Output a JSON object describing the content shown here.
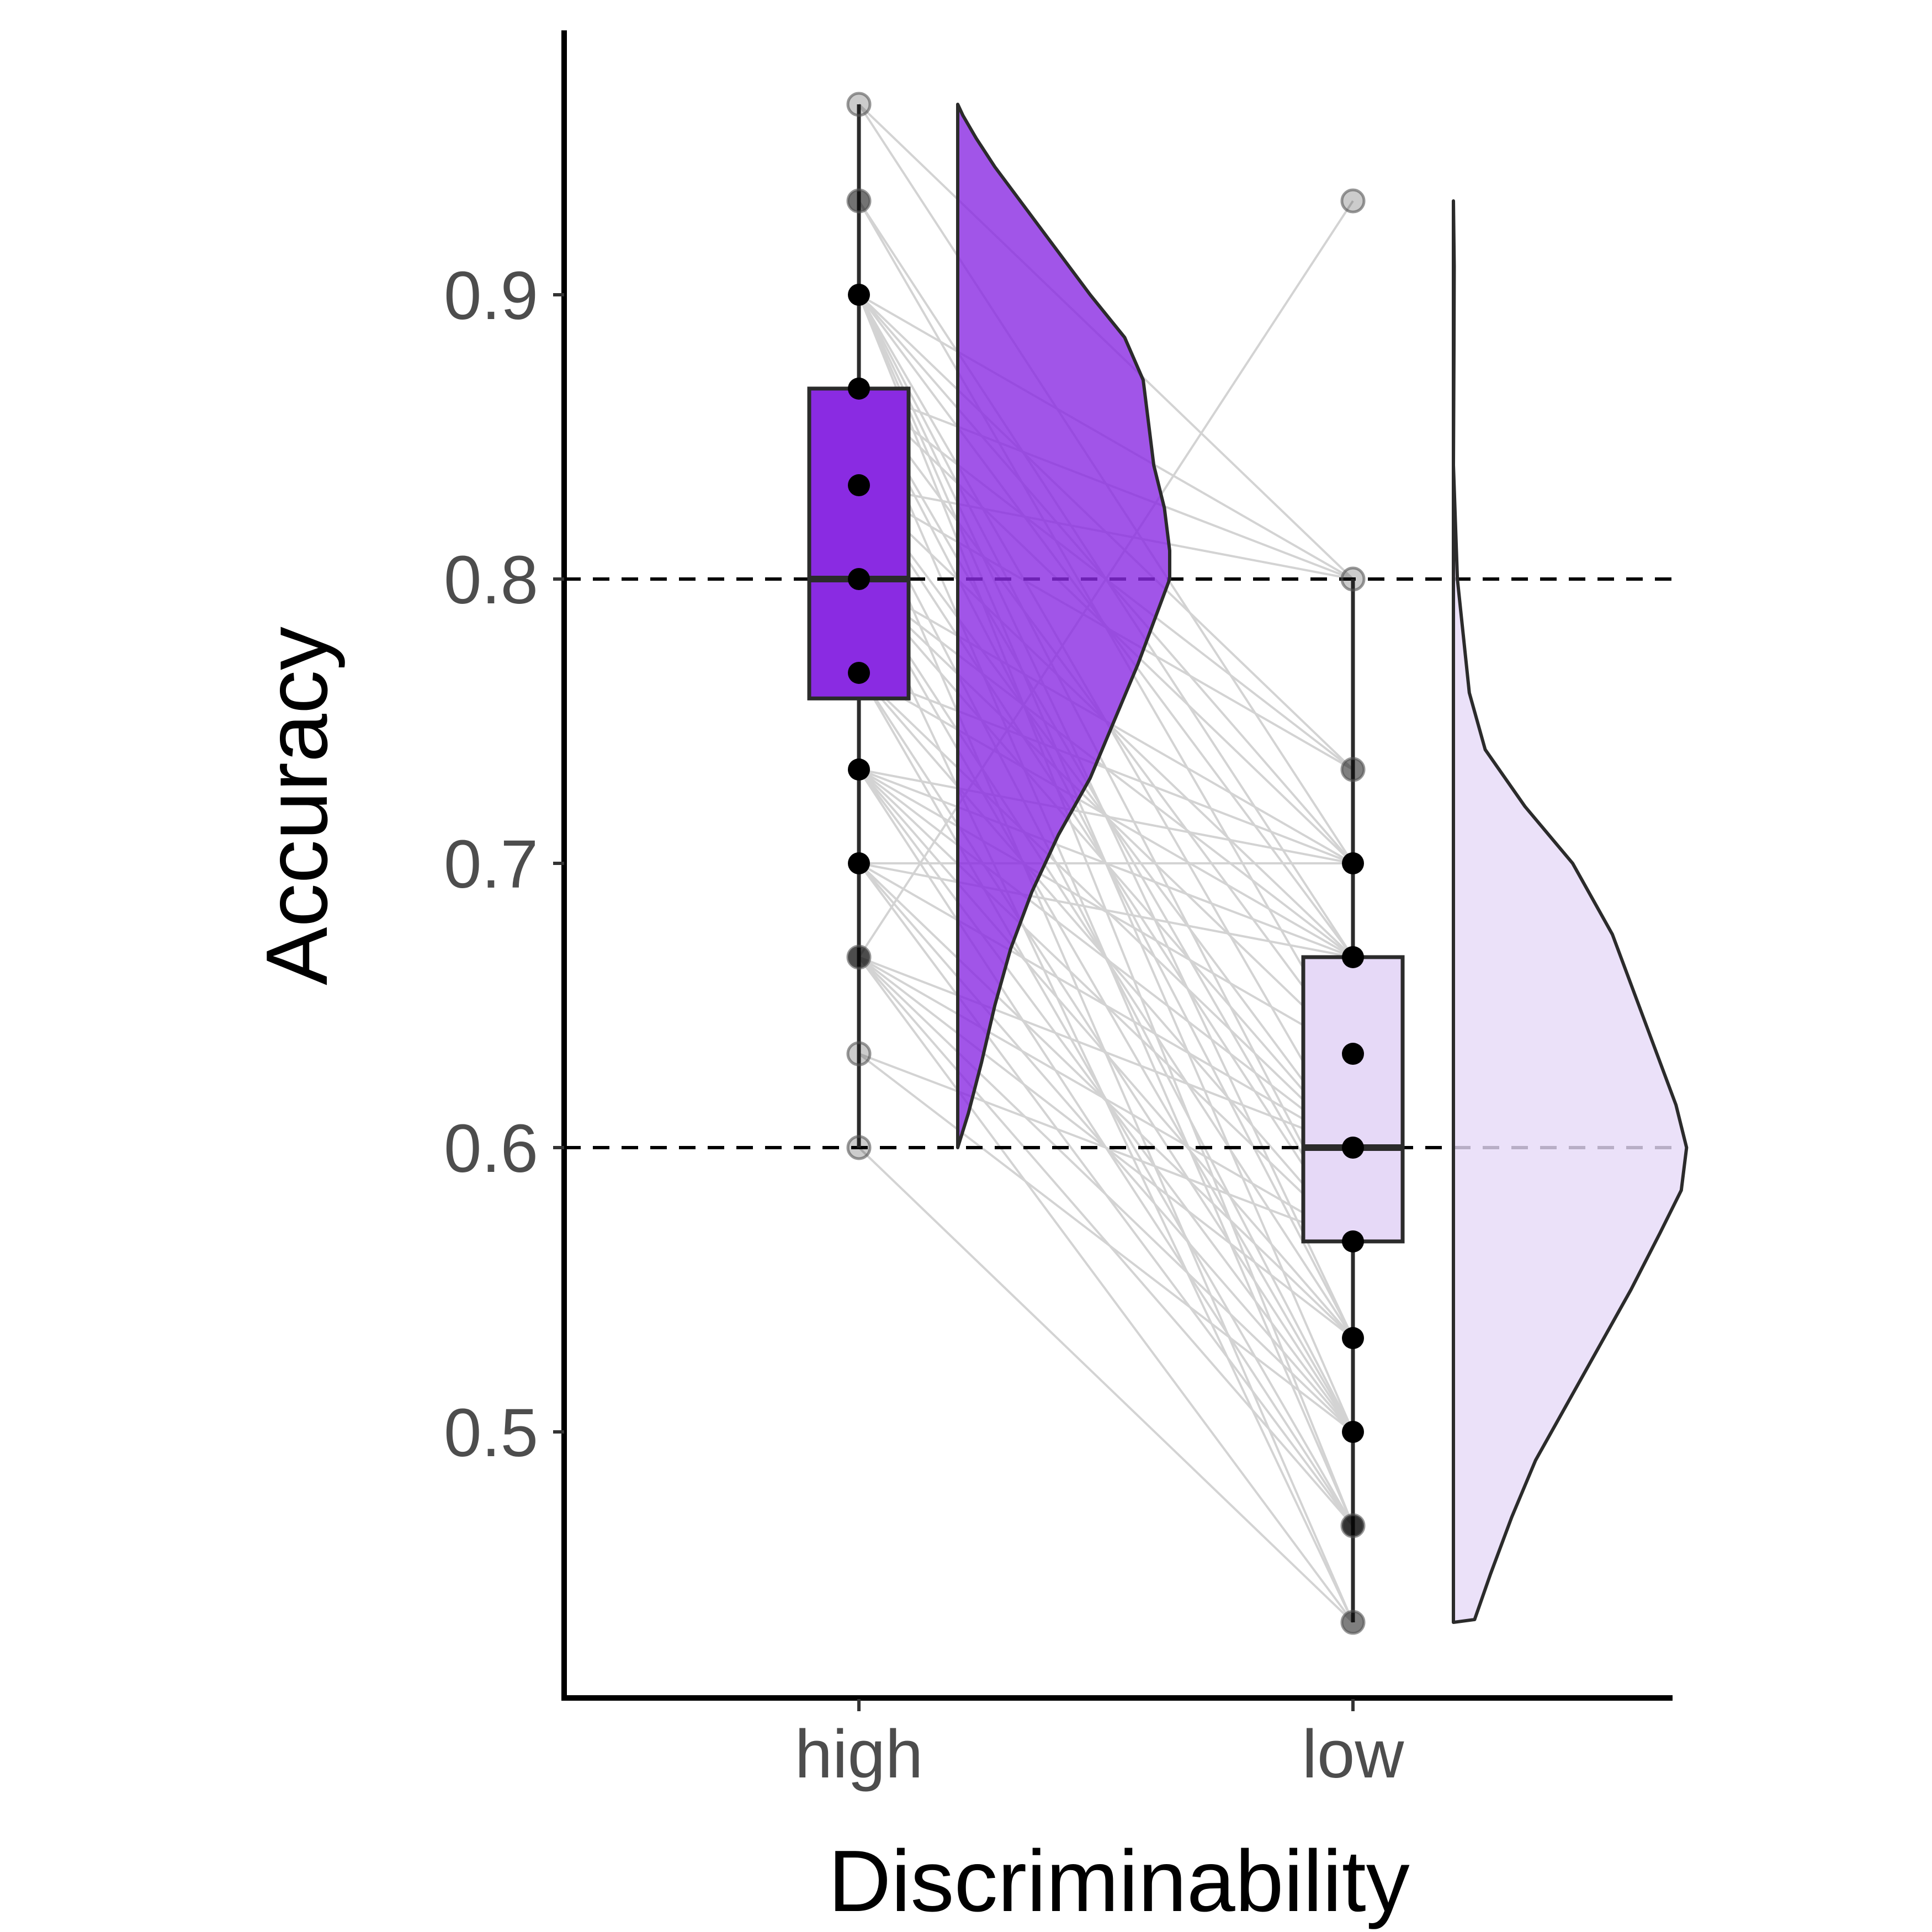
{
  "chart_data": {
    "type": "raincloud",
    "xlabel": "Discriminability",
    "ylabel": "Accuracy",
    "ylim": [
      0.415,
      0.99
    ],
    "y_ticks": [
      0.5,
      0.6,
      0.7,
      0.8,
      0.9
    ],
    "y_tick_labels": [
      "0.5",
      "0.6",
      "0.7",
      "0.8",
      "0.9"
    ],
    "reference_lines": [
      0.6,
      0.8
    ],
    "grid": false,
    "categories": [
      "high",
      "low"
    ],
    "groups": [
      {
        "category": "high",
        "color": "#8a2be2",
        "fill_opacity": 0.95,
        "box": {
          "whisker_low": 0.6,
          "q1": 0.758,
          "median": 0.8,
          "q3": 0.867,
          "whisker_high": 0.967
        },
        "points": [
          0.967,
          0.933,
          0.9,
          0.867,
          0.833,
          0.8,
          0.767,
          0.733,
          0.7,
          0.667,
          0.633,
          0.6
        ],
        "point_opacity": [
          0.2,
          0.55,
          1,
          1,
          1,
          1,
          1,
          1,
          1,
          0.7,
          0.2,
          0.2
        ],
        "density": [
          [
            0.6,
            0.0
          ],
          [
            0.612,
            0.04
          ],
          [
            0.63,
            0.09
          ],
          [
            0.65,
            0.14
          ],
          [
            0.67,
            0.2
          ],
          [
            0.69,
            0.28
          ],
          [
            0.71,
            0.38
          ],
          [
            0.73,
            0.5
          ],
          [
            0.75,
            0.59
          ],
          [
            0.77,
            0.68
          ],
          [
            0.79,
            0.76
          ],
          [
            0.8,
            0.8
          ],
          [
            0.81,
            0.8
          ],
          [
            0.825,
            0.78
          ],
          [
            0.84,
            0.74
          ],
          [
            0.855,
            0.72
          ],
          [
            0.87,
            0.7
          ],
          [
            0.885,
            0.63
          ],
          [
            0.9,
            0.5
          ],
          [
            0.915,
            0.38
          ],
          [
            0.93,
            0.26
          ],
          [
            0.945,
            0.14
          ],
          [
            0.955,
            0.07
          ],
          [
            0.963,
            0.02
          ],
          [
            0.967,
            0.0
          ]
        ]
      },
      {
        "category": "low",
        "color": "#e6d9f7",
        "fill_opacity": 0.95,
        "box": {
          "whisker_low": 0.433,
          "q1": 0.567,
          "median": 0.6,
          "q3": 0.667,
          "whisker_high": 0.8
        },
        "points": [
          0.933,
          0.8,
          0.733,
          0.7,
          0.667,
          0.633,
          0.6,
          0.567,
          0.533,
          0.5,
          0.467,
          0.433
        ],
        "point_opacity": [
          0.2,
          0.2,
          0.5,
          1,
          1,
          1,
          1,
          1,
          1,
          1,
          0.8,
          0.5
        ],
        "density": [
          [
            0.433,
            0.0
          ],
          [
            0.434,
            0.08
          ],
          [
            0.45,
            0.14
          ],
          [
            0.47,
            0.22
          ],
          [
            0.49,
            0.31
          ],
          [
            0.51,
            0.43
          ],
          [
            0.53,
            0.55
          ],
          [
            0.55,
            0.67
          ],
          [
            0.57,
            0.78
          ],
          [
            0.585,
            0.86
          ],
          [
            0.6,
            0.88
          ],
          [
            0.615,
            0.84
          ],
          [
            0.635,
            0.76
          ],
          [
            0.655,
            0.68
          ],
          [
            0.675,
            0.6
          ],
          [
            0.7,
            0.45
          ],
          [
            0.72,
            0.27
          ],
          [
            0.74,
            0.12
          ],
          [
            0.76,
            0.06
          ],
          [
            0.8,
            0.015
          ],
          [
            0.84,
            0.0
          ],
          [
            0.88,
            0.002
          ],
          [
            0.91,
            0.003
          ],
          [
            0.933,
            0.0
          ]
        ]
      }
    ],
    "paired_lines": [
      [
        0.967,
        0.8
      ],
      [
        0.967,
        0.7
      ],
      [
        0.933,
        0.667
      ],
      [
        0.933,
        0.633
      ],
      [
        0.9,
        0.8
      ],
      [
        0.9,
        0.7
      ],
      [
        0.9,
        0.667
      ],
      [
        0.9,
        0.6
      ],
      [
        0.9,
        0.567
      ],
      [
        0.9,
        0.533
      ],
      [
        0.9,
        0.5
      ],
      [
        0.9,
        0.467
      ],
      [
        0.9,
        0.733
      ],
      [
        0.867,
        0.8
      ],
      [
        0.867,
        0.7
      ],
      [
        0.867,
        0.633
      ],
      [
        0.867,
        0.567
      ],
      [
        0.867,
        0.533
      ],
      [
        0.867,
        0.467
      ],
      [
        0.867,
        0.733
      ],
      [
        0.833,
        0.8
      ],
      [
        0.833,
        0.733
      ],
      [
        0.833,
        0.667
      ],
      [
        0.833,
        0.6
      ],
      [
        0.833,
        0.567
      ],
      [
        0.833,
        0.5
      ],
      [
        0.833,
        0.433
      ],
      [
        0.8,
        0.7
      ],
      [
        0.8,
        0.667
      ],
      [
        0.8,
        0.633
      ],
      [
        0.8,
        0.6
      ],
      [
        0.8,
        0.533
      ],
      [
        0.8,
        0.5
      ],
      [
        0.8,
        0.433
      ],
      [
        0.767,
        0.7
      ],
      [
        0.767,
        0.667
      ],
      [
        0.767,
        0.6
      ],
      [
        0.767,
        0.567
      ],
      [
        0.767,
        0.5
      ],
      [
        0.767,
        0.467
      ],
      [
        0.733,
        0.7
      ],
      [
        0.733,
        0.667
      ],
      [
        0.733,
        0.633
      ],
      [
        0.733,
        0.6
      ],
      [
        0.733,
        0.567
      ],
      [
        0.733,
        0.533
      ],
      [
        0.733,
        0.5
      ],
      [
        0.733,
        0.467
      ],
      [
        0.7,
        0.7
      ],
      [
        0.7,
        0.667
      ],
      [
        0.7,
        0.6
      ],
      [
        0.7,
        0.533
      ],
      [
        0.7,
        0.5
      ],
      [
        0.7,
        0.467
      ],
      [
        0.667,
        0.6
      ],
      [
        0.667,
        0.567
      ],
      [
        0.667,
        0.533
      ],
      [
        0.667,
        0.5
      ],
      [
        0.667,
        0.467
      ],
      [
        0.667,
        0.433
      ],
      [
        0.667,
        0.933
      ],
      [
        0.633,
        0.567
      ],
      [
        0.633,
        0.5
      ],
      [
        0.6,
        0.433
      ]
    ]
  }
}
